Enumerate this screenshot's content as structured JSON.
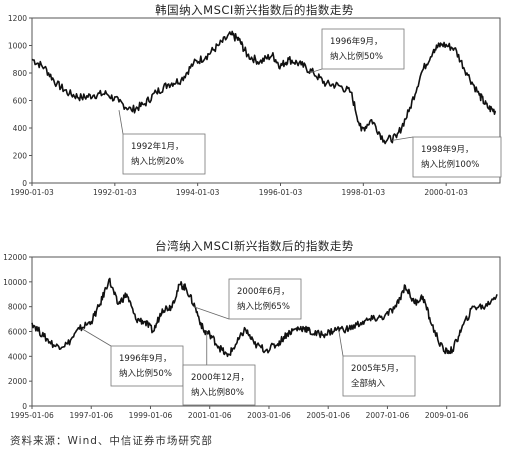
{
  "chart_data": [
    {
      "type": "line",
      "title": "韩国纳入MSCI新兴指数后的指数走势",
      "y_ticks": [
        0,
        200,
        400,
        600,
        800,
        1000,
        1200
      ],
      "ylim": [
        0,
        1200
      ],
      "x_ticks": [
        "1990-01-03",
        "1992-01-03",
        "1994-01-03",
        "1996-01-03",
        "1998-01-03",
        "2000-01-03"
      ],
      "xlim": [
        1990.0,
        2001.3
      ],
      "series": [
        {
          "x": [
            1990.0,
            1990.3,
            1990.6,
            1990.9,
            1991.2,
            1991.5,
            1991.8,
            1992.1,
            1992.4,
            1992.7,
            1993.0,
            1993.3,
            1993.6,
            1993.9,
            1994.2,
            1994.5,
            1994.8,
            1995.0,
            1995.2,
            1995.5,
            1995.8,
            1996.0,
            1996.2,
            1996.5,
            1996.8,
            1997.1,
            1997.4,
            1997.7,
            1997.95,
            1998.2,
            1998.5,
            1998.8,
            1999.1,
            1999.4,
            1999.7,
            1999.9,
            2000.2,
            2000.5,
            2000.8,
            2001.0,
            2001.2
          ],
          "y": [
            900,
            840,
            720,
            650,
            620,
            640,
            650,
            590,
            530,
            570,
            660,
            720,
            750,
            870,
            920,
            1000,
            1080,
            1040,
            930,
            880,
            930,
            850,
            900,
            860,
            800,
            720,
            710,
            660,
            380,
            460,
            310,
            330,
            520,
            800,
            970,
            1010,
            980,
            800,
            640,
            550,
            520
          ]
        }
      ],
      "annotations": [
        {
          "lines": [
            "1992年1月，",
            "纳入比例20%"
          ]
        },
        {
          "lines": [
            "1996年9月，",
            "纳入比例50%"
          ]
        },
        {
          "lines": [
            "1998年9月，",
            "纳入比例100%"
          ]
        }
      ]
    },
    {
      "type": "line",
      "title": "台湾纳入MSCI新兴指数后的指数走势",
      "y_ticks": [
        0,
        2000,
        4000,
        6000,
        8000,
        10000,
        12000
      ],
      "ylim": [
        0,
        12000
      ],
      "x_ticks": [
        "1995-01-06",
        "1997-01-06",
        "1999-01-06",
        "2001-01-06",
        "2003-01-06",
        "2005-01-06",
        "2007-01-06",
        "2009-01-06"
      ],
      "xlim": [
        1995.0,
        2010.8
      ],
      "series": [
        {
          "x": [
            1995.0,
            1995.4,
            1995.8,
            1996.2,
            1996.6,
            1997.0,
            1997.3,
            1997.6,
            1997.9,
            1998.2,
            1998.5,
            1998.8,
            1999.1,
            1999.4,
            1999.7,
            2000.0,
            2000.2,
            2000.5,
            2000.8,
            2001.0,
            2001.3,
            2001.6,
            2001.9,
            2002.2,
            2002.5,
            2002.9,
            2003.3,
            2003.6,
            2003.9,
            2004.2,
            2004.5,
            2004.9,
            2005.3,
            2005.7,
            2006.1,
            2006.5,
            2006.9,
            2007.3,
            2007.6,
            2007.9,
            2008.2,
            2008.5,
            2008.9,
            2009.2,
            2009.5,
            2009.9,
            2010.3,
            2010.7
          ],
          "y": [
            6700,
            5600,
            4800,
            5000,
            6200,
            6800,
            8200,
            10200,
            8200,
            9000,
            7000,
            6800,
            6000,
            7800,
            8000,
            9800,
            9500,
            8000,
            6000,
            5800,
            4800,
            4000,
            5000,
            6200,
            5000,
            4500,
            5000,
            5800,
            6200,
            6300,
            5800,
            5800,
            6200,
            6200,
            6700,
            7000,
            7200,
            8000,
            9700,
            8300,
            8800,
            6500,
            4400,
            4500,
            6200,
            8000,
            8000,
            9000
          ]
        }
      ],
      "annotations": [
        {
          "lines": [
            "1996年9月，",
            "纳入比例50%"
          ]
        },
        {
          "lines": [
            "2000年6月，",
            "纳入比例65%"
          ]
        },
        {
          "lines": [
            "2000年12月，",
            "纳入比例80%"
          ]
        },
        {
          "lines": [
            "2005年5月，",
            "全部纳入"
          ]
        }
      ]
    }
  ],
  "source": "资料来源：Wind、中信证券市场研究部"
}
